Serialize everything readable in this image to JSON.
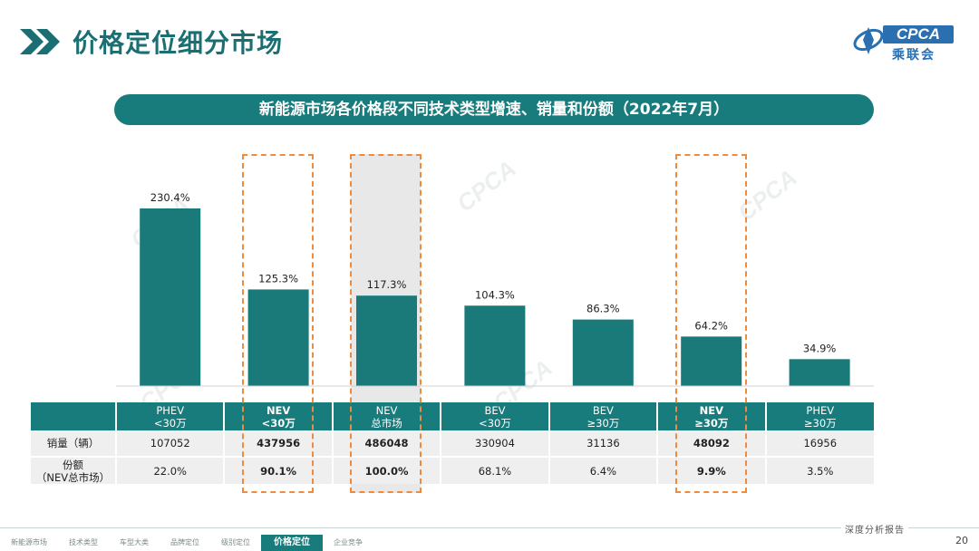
{
  "header": {
    "title": "价格定位细分市场"
  },
  "logo": {
    "text": "CPCA",
    "sub": "乘联会"
  },
  "banner": {
    "text": "新能源市场各价格段不同技术类型增速、销量和份额（2022年7月）"
  },
  "chart_data": {
    "type": "bar",
    "categories": [
      "PHEV\n<30万",
      "NEV\n<30万",
      "NEV\n总市场",
      "BEV\n<30万",
      "BEV\n≥30万",
      "NEV\n≥30万",
      "PHEV\n≥30万"
    ],
    "values": [
      230.4,
      125.3,
      117.3,
      104.3,
      86.3,
      64.2,
      34.9
    ],
    "value_labels": [
      "230.4%",
      "125.3%",
      "117.3%",
      "104.3%",
      "86.3%",
      "64.2%",
      "34.9%"
    ],
    "bar_color": "#1a7a7a",
    "table": {
      "row_labels": [
        "销量（辆）",
        "份额\n（NEV总市场）"
      ],
      "sales": [
        "107052",
        "437956",
        "486048",
        "330904",
        "31136",
        "48092",
        "16956"
      ],
      "share": [
        "22.0%",
        "90.1%",
        "100.0%",
        "68.1%",
        "6.4%",
        "9.9%",
        "3.5%"
      ]
    },
    "highlighted_columns": [
      1,
      2,
      5
    ],
    "shaded_column": 2
  },
  "watermark": {
    "text": "CPCA"
  },
  "footer": {
    "report": "深度分析报告",
    "page": "20",
    "nav": [
      "新能源市场",
      "技术类型",
      "车型大类",
      "品牌定位",
      "级别定位",
      "价格定位",
      "企业竞争"
    ],
    "active_index": 5
  },
  "colors": {
    "accent": "#187b7c",
    "highlight": "#f08a3c"
  }
}
